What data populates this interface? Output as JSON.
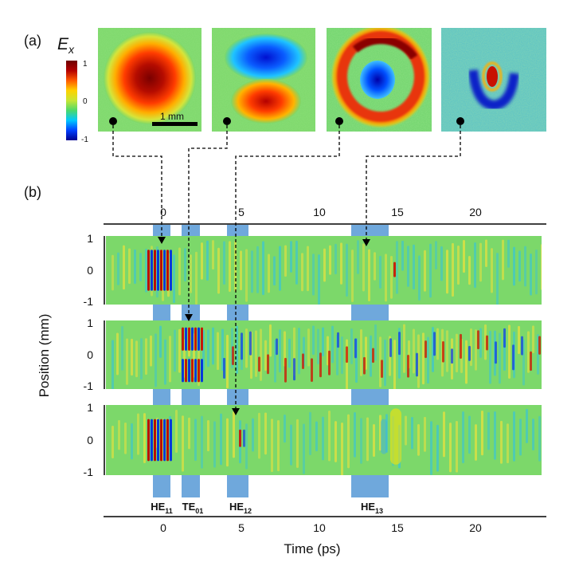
{
  "panel_a": {
    "label": "(a)",
    "field_symbol": "E",
    "field_subscript": "x",
    "colorbar": {
      "max_label": "1",
      "mid_label": "0",
      "min_label": "-1",
      "colors": [
        "#00008f",
        "#0040ff",
        "#00c8ff",
        "#4cd96a",
        "#c8e633",
        "#ffd200",
        "#ff5a00",
        "#b40000",
        "#6e0000"
      ]
    },
    "scale_bar_label": "1 mm",
    "mode_maps": [
      "HE11 map",
      "TE01 map",
      "HE12 map",
      "HE13 map"
    ]
  },
  "panel_b": {
    "label": "(b)",
    "top_axis_ticks": [
      "0",
      "5",
      "10",
      "15",
      "20"
    ],
    "bottom_axis_ticks": [
      "0",
      "5",
      "10",
      "15",
      "20"
    ],
    "xlabel": "Time (ps)",
    "ylabel": "Position (mm)",
    "strip_ticks": [
      "1",
      "0",
      "-1"
    ],
    "mode_labels": [
      {
        "base": "HE",
        "sub": "11"
      },
      {
        "base": "TE",
        "sub": "01"
      },
      {
        "base": "HE",
        "sub": "12"
      },
      {
        "base": "HE",
        "sub": "13"
      }
    ],
    "highlight_color": "#6fa8dc"
  }
}
